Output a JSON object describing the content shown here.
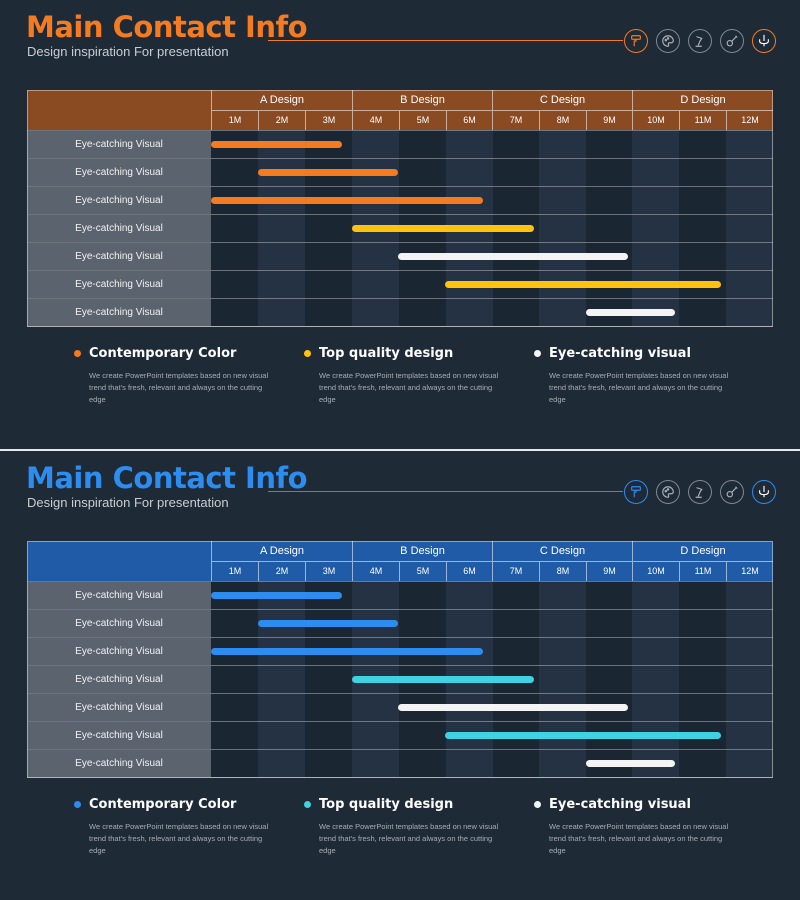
{
  "slides": [
    {
      "title": "Main Contact Info",
      "subtitle": "Design inspiration For presentation",
      "theme": {
        "accent": "#f47b20",
        "header_bg": "#8a4a22",
        "bar_secondary": "#ffc20e",
        "bar_neutral": "#f4f4f4"
      },
      "icons": [
        "paint-roller-icon",
        "palette-icon",
        "desk-lamp-icon",
        "guitar-icon",
        "chandelier-icon"
      ],
      "phases": [
        "A Design",
        "B Design",
        "C Design",
        "D Design"
      ],
      "months": [
        "1M",
        "2M",
        "3M",
        "4M",
        "5M",
        "6M",
        "7M",
        "8M",
        "9M",
        "10M",
        "11M",
        "12M"
      ],
      "rows": [
        {
          "label": "Eye-catching Visual",
          "start_month": 0,
          "end_month": 2.8,
          "color": "accent"
        },
        {
          "label": "Eye-catching Visual",
          "start_month": 1,
          "end_month": 4.0,
          "color": "accent"
        },
        {
          "label": "Eye-catching Visual",
          "start_month": 0,
          "end_month": 5.8,
          "color": "accent"
        },
        {
          "label": "Eye-catching Visual",
          "start_month": 3,
          "end_month": 6.9,
          "color": "secondary"
        },
        {
          "label": "Eye-catching Visual",
          "start_month": 4,
          "end_month": 8.9,
          "color": "neutral"
        },
        {
          "label": "Eye-catching Visual",
          "start_month": 5,
          "end_month": 10.9,
          "color": "secondary"
        },
        {
          "label": "Eye-catching Visual",
          "start_month": 8,
          "end_month": 9.9,
          "color": "neutral"
        }
      ],
      "legend": [
        {
          "title": "Contemporary Color",
          "dot": "accent",
          "desc": "We create PowerPoint templates based on new visual trend that's fresh, relevant and always on the cutting edge"
        },
        {
          "title": "Top quality design",
          "dot": "secondary",
          "desc": "We create PowerPoint templates based on new visual trend that's fresh, relevant and always on the cutting edge"
        },
        {
          "title": "Eye-catching visual",
          "dot": "neutral",
          "desc": "We create PowerPoint templates based on new visual trend that's fresh, relevant and always on the cutting edge"
        }
      ]
    },
    {
      "title": "Main Contact Info",
      "subtitle": "Design inspiration For presentation",
      "theme": {
        "accent": "#2d8cf0",
        "header_bg": "#1f5ba6",
        "bar_secondary": "#3fd2e3",
        "bar_neutral": "#f4f4f4"
      },
      "icons": [
        "paint-roller-icon",
        "palette-icon",
        "desk-lamp-icon",
        "guitar-icon",
        "chandelier-icon"
      ],
      "phases": [
        "A Design",
        "B Design",
        "C Design",
        "D Design"
      ],
      "months": [
        "1M",
        "2M",
        "3M",
        "4M",
        "5M",
        "6M",
        "7M",
        "8M",
        "9M",
        "10M",
        "11M",
        "12M"
      ],
      "rows": [
        {
          "label": "Eye-catching Visual",
          "start_month": 0,
          "end_month": 2.8,
          "color": "accent"
        },
        {
          "label": "Eye-catching Visual",
          "start_month": 1,
          "end_month": 4.0,
          "color": "accent"
        },
        {
          "label": "Eye-catching Visual",
          "start_month": 0,
          "end_month": 5.8,
          "color": "accent"
        },
        {
          "label": "Eye-catching Visual",
          "start_month": 3,
          "end_month": 6.9,
          "color": "secondary"
        },
        {
          "label": "Eye-catching Visual",
          "start_month": 4,
          "end_month": 8.9,
          "color": "neutral"
        },
        {
          "label": "Eye-catching Visual",
          "start_month": 5,
          "end_month": 10.9,
          "color": "secondary"
        },
        {
          "label": "Eye-catching Visual",
          "start_month": 8,
          "end_month": 9.9,
          "color": "neutral"
        }
      ],
      "legend": [
        {
          "title": "Contemporary Color",
          "dot": "accent",
          "desc": "We create PowerPoint templates based on new visual trend that's fresh, relevant and always on the cutting edge"
        },
        {
          "title": "Top quality design",
          "dot": "secondary",
          "desc": "We create PowerPoint templates based on new visual trend that's fresh, relevant and always on the cutting edge"
        },
        {
          "title": "Eye-catching visual",
          "dot": "neutral",
          "desc": "We create PowerPoint templates based on new visual trend that's fresh, relevant and always on the cutting edge"
        }
      ]
    }
  ]
}
